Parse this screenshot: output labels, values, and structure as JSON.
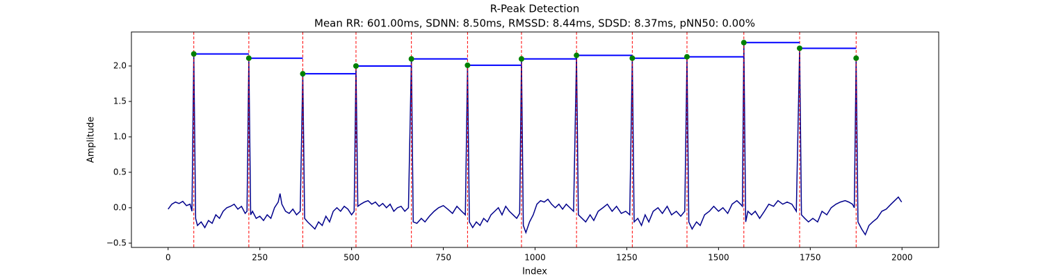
{
  "chart_data": {
    "type": "line",
    "title": "R-Peak Detection",
    "subtitle": "Mean RR: 601.00ms, SDNN: 8.50ms, RMSSD: 8.44ms, SDSD: 8.37ms, pNN50: 0.00%",
    "xlabel": "Index",
    "ylabel": "Amplitude",
    "xlim": [
      -100,
      2100
    ],
    "ylim": [
      -0.56,
      2.48
    ],
    "xticks": [
      0,
      250,
      500,
      750,
      1000,
      1250,
      1500,
      1750,
      2000
    ],
    "yticks": [
      {
        "value": -0.5,
        "label": "−0.5"
      },
      {
        "value": 0,
        "label": "0.0"
      },
      0.5,
      {
        "value": 1,
        "label": "1.0"
      },
      1.5,
      {
        "value": 2,
        "label": "2.0"
      }
    ],
    "signal": {
      "color": "#00008b",
      "x": [
        0,
        10,
        20,
        30,
        40,
        50,
        60,
        65,
        70,
        75,
        80,
        90,
        100,
        110,
        120,
        130,
        140,
        150,
        160,
        170,
        180,
        190,
        200,
        210,
        215,
        220,
        225,
        230,
        240,
        250,
        260,
        270,
        280,
        290,
        300,
        305,
        310,
        320,
        330,
        340,
        350,
        360,
        367,
        372,
        380,
        390,
        400,
        410,
        420,
        430,
        440,
        450,
        460,
        470,
        480,
        490,
        500,
        507,
        512,
        517,
        525,
        535,
        545,
        555,
        565,
        575,
        585,
        595,
        605,
        615,
        625,
        635,
        645,
        655,
        663,
        668,
        678,
        690,
        700,
        712,
        725,
        737,
        750,
        762,
        775,
        787,
        800,
        810,
        816,
        821,
        830,
        840,
        850,
        860,
        870,
        880,
        890,
        900,
        910,
        920,
        930,
        940,
        950,
        958,
        963,
        968,
        975,
        985,
        995,
        1005,
        1015,
        1025,
        1035,
        1045,
        1055,
        1065,
        1075,
        1085,
        1095,
        1105,
        1113,
        1118,
        1128,
        1138,
        1150,
        1160,
        1172,
        1185,
        1197,
        1210,
        1222,
        1235,
        1247,
        1258,
        1265,
        1270,
        1280,
        1290,
        1300,
        1310,
        1322,
        1335,
        1347,
        1360,
        1372,
        1385,
        1397,
        1408,
        1414,
        1419,
        1428,
        1440,
        1450,
        1462,
        1475,
        1487,
        1500,
        1512,
        1525,
        1537,
        1550,
        1560,
        1565,
        1569,
        1574,
        1580,
        1590,
        1600,
        1612,
        1625,
        1637,
        1650,
        1662,
        1675,
        1687,
        1700,
        1712,
        1721,
        1726,
        1735,
        1745,
        1757,
        1770,
        1782,
        1795,
        1807,
        1820,
        1832,
        1845,
        1855,
        1865,
        1870,
        1875,
        1880,
        1890,
        1900,
        1910,
        1920,
        1932,
        1945,
        1957,
        1970,
        1980,
        1990,
        1999
      ],
      "values": [
        -0.02,
        0.05,
        0.08,
        0.06,
        0.09,
        0.03,
        0.05,
        -0.05,
        2.17,
        -0.15,
        -0.25,
        -0.2,
        -0.28,
        -0.18,
        -0.22,
        -0.1,
        -0.15,
        -0.05,
        0,
        0.02,
        0.05,
        -0.02,
        0.02,
        -0.08,
        -0.05,
        2.11,
        -0.1,
        -0.05,
        -0.15,
        -0.12,
        -0.18,
        -0.1,
        -0.15,
        0,
        0.08,
        0.2,
        0.05,
        -0.05,
        -0.08,
        -0.02,
        -0.1,
        -0.05,
        1.89,
        -0.15,
        -0.2,
        -0.25,
        -0.3,
        -0.2,
        -0.25,
        -0.12,
        -0.2,
        -0.05,
        0,
        -0.05,
        0.02,
        -0.02,
        -0.1,
        -0.05,
        2,
        0.02,
        0.05,
        0.08,
        0.1,
        0.05,
        0.08,
        0.02,
        0.06,
        0,
        0.05,
        -0.05,
        0,
        0.02,
        -0.05,
        0,
        2.1,
        -0.2,
        -0.22,
        -0.15,
        -0.2,
        -0.12,
        -0.05,
        0,
        0.03,
        -0.02,
        -0.08,
        0.02,
        -0.05,
        -0.1,
        2.01,
        -0.2,
        -0.28,
        -0.2,
        -0.25,
        -0.15,
        -0.2,
        -0.1,
        -0.05,
        0,
        -0.1,
        0.02,
        -0.05,
        -0.1,
        -0.15,
        -0.08,
        2.1,
        -0.25,
        -0.35,
        -0.2,
        -0.1,
        0.05,
        0.1,
        0.08,
        0.12,
        0.05,
        0,
        0.05,
        -0.02,
        0.05,
        0,
        -0.05,
        2.15,
        -0.1,
        -0.15,
        -0.2,
        -0.1,
        -0.18,
        -0.05,
        0,
        0.05,
        -0.05,
        0.02,
        -0.08,
        -0.05,
        -0.1,
        2.11,
        -0.2,
        -0.15,
        -0.25,
        -0.1,
        -0.2,
        -0.05,
        0,
        -0.08,
        0.02,
        -0.1,
        -0.05,
        -0.12,
        -0.05,
        2.13,
        -0.2,
        -0.3,
        -0.2,
        -0.25,
        -0.1,
        -0.05,
        0.02,
        -0.05,
        0,
        -0.08,
        0.05,
        0.1,
        0.05,
        0.02,
        2.33,
        -0.2,
        -0.05,
        -0.1,
        -0.05,
        -0.15,
        -0.05,
        0.05,
        0.02,
        0.1,
        0.05,
        0.08,
        0.05,
        -0.05,
        2.25,
        -0.1,
        -0.15,
        -0.2,
        -0.15,
        -0.2,
        -0.05,
        -0.1,
        0,
        0.05,
        0.08,
        0.1,
        0.08,
        0.05,
        0,
        2.11,
        -0.2,
        -0.3,
        -0.38,
        -0.25,
        -0.2,
        -0.15,
        -0.05,
        -0.02,
        0.05,
        0.1,
        0.15,
        0.08
      ]
    },
    "peaks": {
      "color": "green",
      "line_color": "red",
      "rr_color": "blue",
      "x": [
        70,
        220,
        367,
        512,
        663,
        816,
        963,
        1113,
        1265,
        1414,
        1569,
        1721,
        1875
      ],
      "values": [
        2.17,
        2.11,
        1.89,
        2.0,
        2.1,
        2.01,
        2.1,
        2.15,
        2.11,
        2.13,
        2.33,
        2.25,
        2.11
      ]
    }
  }
}
